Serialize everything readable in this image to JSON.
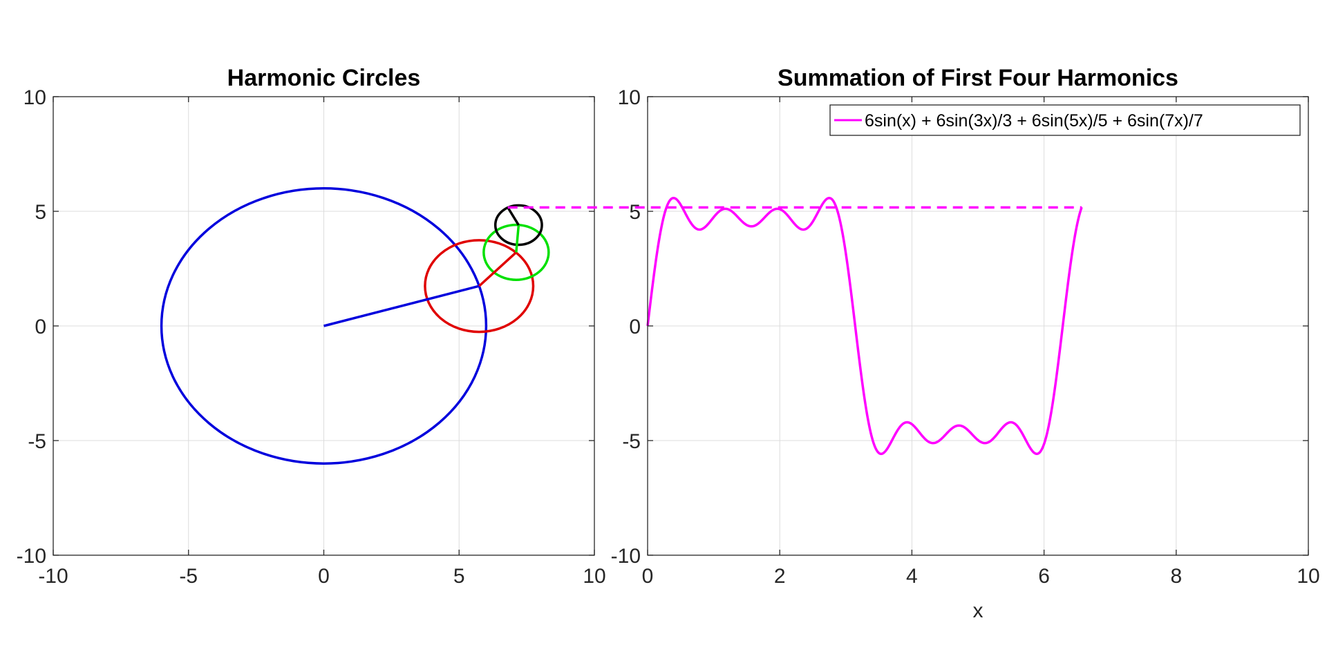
{
  "chart_data": [
    {
      "type": "line",
      "title": "Harmonic Circles",
      "xlabel": "",
      "ylabel": "",
      "xlim": [
        -10,
        10
      ],
      "ylim": [
        -10,
        10
      ],
      "xticks": [
        -10,
        -5,
        0,
        5,
        10
      ],
      "yticks": [
        -10,
        -5,
        0,
        5,
        10
      ],
      "grid": true,
      "circles": [
        {
          "color": "#0000dd",
          "cx": 0.0,
          "cy": 0.0,
          "r": 6.0
        },
        {
          "color": "#e00000",
          "cx": 5.74,
          "cy": 1.74,
          "r": 2.0
        },
        {
          "color": "#00e000",
          "cx": 7.11,
          "cy": 3.21,
          "r": 1.2
        },
        {
          "color": "#000000",
          "cx": 7.2,
          "cy": 4.4,
          "r": 0.86
        }
      ],
      "radius_segments": [
        {
          "color": "#0000dd",
          "from": [
            0.0,
            0.0
          ],
          "to": [
            5.74,
            1.74
          ]
        },
        {
          "color": "#e00000",
          "from": [
            5.74,
            1.74
          ],
          "to": [
            7.11,
            3.21
          ]
        },
        {
          "color": "#00e000",
          "from": [
            7.11,
            3.21
          ],
          "to": [
            7.2,
            4.4
          ]
        },
        {
          "color": "#000000",
          "from": [
            7.2,
            4.4
          ],
          "to": [
            6.8,
            5.17
          ]
        }
      ]
    },
    {
      "type": "line",
      "title": "Summation of First Four Harmonics",
      "xlabel": "x",
      "ylabel": "",
      "xlim": [
        0,
        10
      ],
      "ylim": [
        -10,
        10
      ],
      "xticks": [
        0,
        2,
        4,
        6,
        8,
        10
      ],
      "yticks": [
        -10,
        -5,
        0,
        5,
        10
      ],
      "grid": true,
      "legend_position": "top-right",
      "series": [
        {
          "name": "6sin(x) + 6sin(3x)/3 + 6sin(5x)/5 + 6sin(7x)/7",
          "color": "#ff00ff",
          "function": {
            "amplitude": 6,
            "harmonics": [
              1,
              3,
              5,
              7
            ]
          },
          "x_range": [
            0,
            6.57
          ]
        }
      ],
      "connector": {
        "color": "#ff00ff",
        "y": 5.17,
        "style": "dashed"
      }
    }
  ]
}
